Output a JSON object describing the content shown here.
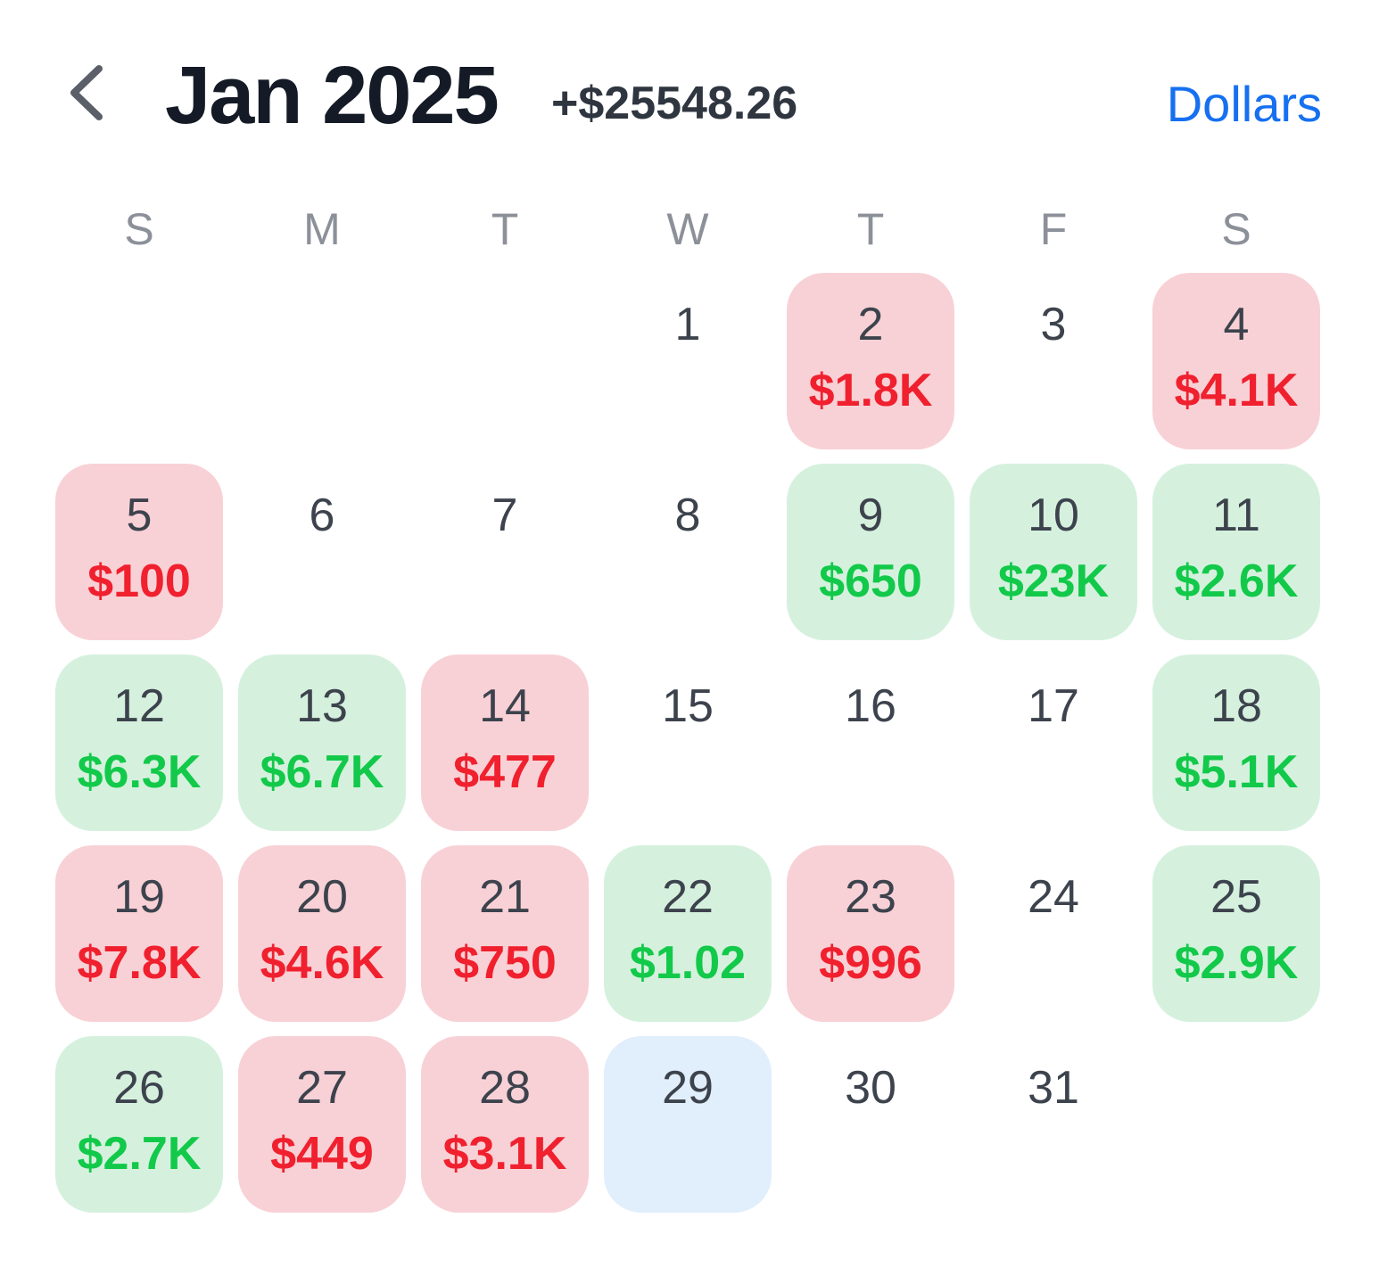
{
  "header": {
    "title": "Jan 2025",
    "total": "+$25548.26",
    "unit_label": "Dollars"
  },
  "colors": {
    "accent": "#1670f0",
    "loss_text": "#f0202e",
    "loss_bg": "#f8d1d6",
    "gain_text": "#12c94a",
    "gain_bg": "#d5f1de",
    "today_bg": "#e1eefc"
  },
  "weekdays": [
    "S",
    "M",
    "T",
    "W",
    "T",
    "F",
    "S"
  ],
  "first_weekday_offset": 3,
  "days": [
    {
      "day": "1",
      "value": "",
      "type": "none"
    },
    {
      "day": "2",
      "value": "$1.8K",
      "type": "loss"
    },
    {
      "day": "3",
      "value": "",
      "type": "none"
    },
    {
      "day": "4",
      "value": "$4.1K",
      "type": "loss"
    },
    {
      "day": "5",
      "value": "$100",
      "type": "loss"
    },
    {
      "day": "6",
      "value": "",
      "type": "none"
    },
    {
      "day": "7",
      "value": "",
      "type": "none"
    },
    {
      "day": "8",
      "value": "",
      "type": "none"
    },
    {
      "day": "9",
      "value": "$650",
      "type": "gain"
    },
    {
      "day": "10",
      "value": "$23K",
      "type": "gain"
    },
    {
      "day": "11",
      "value": "$2.6K",
      "type": "gain"
    },
    {
      "day": "12",
      "value": "$6.3K",
      "type": "gain"
    },
    {
      "day": "13",
      "value": "$6.7K",
      "type": "gain"
    },
    {
      "day": "14",
      "value": "$477",
      "type": "loss"
    },
    {
      "day": "15",
      "value": "",
      "type": "none"
    },
    {
      "day": "16",
      "value": "",
      "type": "none"
    },
    {
      "day": "17",
      "value": "",
      "type": "none"
    },
    {
      "day": "18",
      "value": "$5.1K",
      "type": "gain"
    },
    {
      "day": "19",
      "value": "$7.8K",
      "type": "loss"
    },
    {
      "day": "20",
      "value": "$4.6K",
      "type": "loss"
    },
    {
      "day": "21",
      "value": "$750",
      "type": "loss"
    },
    {
      "day": "22",
      "value": "$1.02",
      "type": "gain"
    },
    {
      "day": "23",
      "value": "$996",
      "type": "loss"
    },
    {
      "day": "24",
      "value": "",
      "type": "none"
    },
    {
      "day": "25",
      "value": "$2.9K",
      "type": "gain"
    },
    {
      "day": "26",
      "value": "$2.7K",
      "type": "gain"
    },
    {
      "day": "27",
      "value": "$449",
      "type": "loss"
    },
    {
      "day": "28",
      "value": "$3.1K",
      "type": "loss"
    },
    {
      "day": "29",
      "value": "",
      "type": "today"
    },
    {
      "day": "30",
      "value": "",
      "type": "none"
    },
    {
      "day": "31",
      "value": "",
      "type": "none"
    }
  ]
}
